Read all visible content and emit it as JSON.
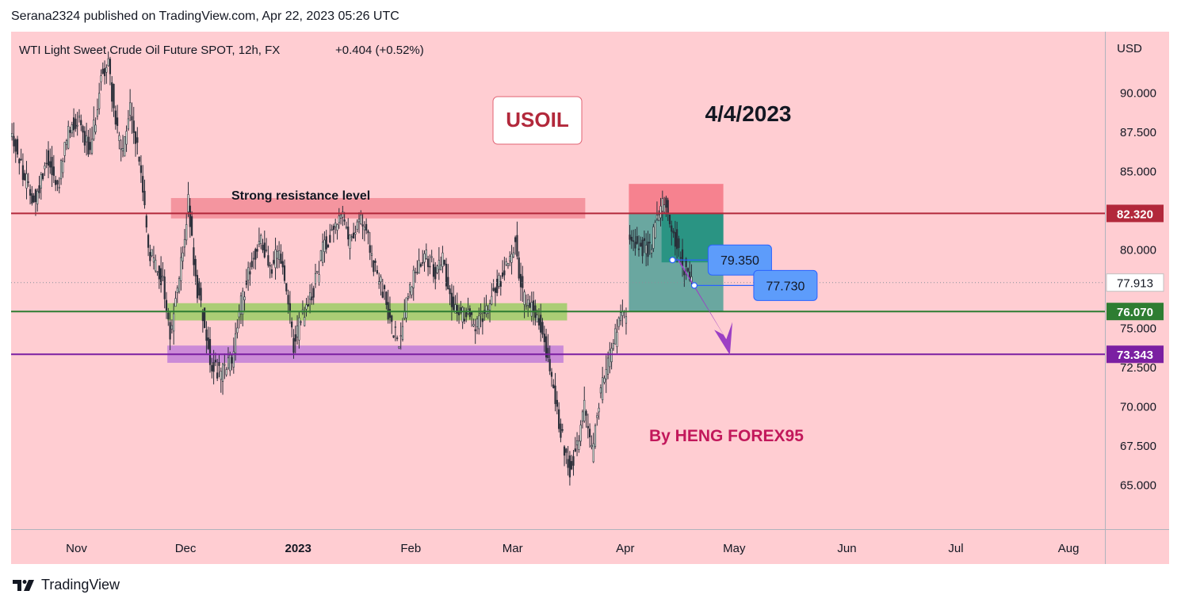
{
  "header": {
    "text": "Serana2324 published on TradingView.com, Apr 22, 2023 05:26 UTC"
  },
  "chart_info": {
    "symbol_line": "WTI Light Sweet Crude Oil Future SPOT, 12h, FX",
    "change": "+0.404 (+0.52%)",
    "currency": "USD"
  },
  "annotations": {
    "ticker_badge": "USOIL",
    "date": "4/4/2023",
    "resistance_label": "Strong resistance level",
    "author": "By HENG FOREX95"
  },
  "footer": {
    "brand": "TradingView"
  },
  "colors": {
    "background": "#ffcdd2",
    "resistance_line": "#b2283b",
    "support_green": "#2e7d32",
    "support_purple": "#7b1fa2",
    "arrow": "#9c3fc4",
    "label_blue": "#5d9cfb",
    "author_text": "#c2185b"
  },
  "chart_data": {
    "type": "candlestick",
    "title": "WTI Light Sweet Crude Oil Future SPOT, 12h, FX",
    "ylabel": "USD",
    "ylim": [
      62.2,
      93.9
    ],
    "x_ticks": [
      "Nov",
      "Dec",
      "2023",
      "Feb",
      "Mar",
      "Apr",
      "May",
      "Jun",
      "Jul",
      "Aug"
    ],
    "x_tick_days": [
      0,
      30,
      61,
      92,
      120,
      151,
      181,
      212,
      242,
      273
    ],
    "x_range_days": [
      -18,
      283
    ],
    "y_ticks": [
      65.0,
      67.5,
      70.0,
      72.5,
      75.0,
      80.0,
      85.0,
      87.5,
      90.0
    ],
    "y_tick_labels": [
      "65.000",
      "67.500",
      "70.000",
      "72.500",
      "75.000",
      "80.000",
      "85.000",
      "87.500",
      "90.000"
    ],
    "current_price": 77.913,
    "current_price_label": "77.913",
    "levels": [
      {
        "name": "resistance",
        "value": 82.32,
        "label": "82.320",
        "color": "#b2283b"
      },
      {
        "name": "support-green",
        "value": 76.07,
        "label": "76.070",
        "color": "#2e7d32"
      },
      {
        "name": "support-purple",
        "value": 73.343,
        "label": "73.343",
        "color": "#7b1fa2"
      }
    ],
    "zones": [
      {
        "name": "resistance-zone",
        "day_start": 26,
        "day_end": 140,
        "low": 82.0,
        "high": 83.3,
        "color": "#f28b96"
      },
      {
        "name": "green-zone",
        "day_start": 25,
        "day_end": 135,
        "low": 75.5,
        "high": 76.6,
        "color": "#9ccc65"
      },
      {
        "name": "purple-zone",
        "day_start": 25,
        "day_end": 134,
        "low": 72.8,
        "high": 73.9,
        "color": "#c27fd8"
      }
    ],
    "position": {
      "type": "short",
      "day_start": 152,
      "day_end": 178,
      "entry": 82.32,
      "stop": 84.2,
      "target": 76.07
    },
    "price_labels": [
      {
        "value": 79.35,
        "label": "79.350",
        "day": 164
      },
      {
        "value": 77.73,
        "label": "77.730",
        "day": 170
      }
    ],
    "ohlc_anchors": [
      [
        -18,
        87.8
      ],
      [
        -14,
        84.5
      ],
      [
        -11,
        83.0
      ],
      [
        -8,
        86.0
      ],
      [
        -5,
        84.0
      ],
      [
        -2,
        87.5
      ],
      [
        1,
        88.5
      ],
      [
        4,
        86.0
      ],
      [
        7,
        91.0
      ],
      [
        9,
        92.0
      ],
      [
        11,
        88.0
      ],
      [
        13,
        86.0
      ],
      [
        15,
        89.0
      ],
      [
        18,
        85.0
      ],
      [
        20,
        80.0
      ],
      [
        22,
        79.0
      ],
      [
        24,
        78.0
      ],
      [
        26,
        74.5
      ],
      [
        29,
        79.0
      ],
      [
        31,
        83.0
      ],
      [
        33,
        78.0
      ],
      [
        35,
        76.0
      ],
      [
        37,
        73.0
      ],
      [
        40,
        72.0
      ],
      [
        43,
        73.0
      ],
      [
        45,
        76.0
      ],
      [
        48,
        79.0
      ],
      [
        51,
        80.5
      ],
      [
        54,
        79.0
      ],
      [
        56,
        80.0
      ],
      [
        58,
        77.0
      ],
      [
        60,
        74.0
      ],
      [
        62,
        75.5
      ],
      [
        65,
        77.0
      ],
      [
        68,
        80.0
      ],
      [
        71,
        81.5
      ],
      [
        73,
        82.5
      ],
      [
        75,
        80.5
      ],
      [
        78,
        82.0
      ],
      [
        80,
        81.0
      ],
      [
        82,
        79.0
      ],
      [
        85,
        77.0
      ],
      [
        87,
        75.0
      ],
      [
        89,
        74.0
      ],
      [
        91,
        77.0
      ],
      [
        94,
        79.0
      ],
      [
        96,
        80.0
      ],
      [
        99,
        78.5
      ],
      [
        101,
        79.5
      ],
      [
        103,
        77.0
      ],
      [
        106,
        75.5
      ],
      [
        108,
        76.5
      ],
      [
        110,
        75.0
      ],
      [
        112,
        76.0
      ],
      [
        115,
        77.5
      ],
      [
        117,
        78.0
      ],
      [
        119,
        79.5
      ],
      [
        121,
        80.5
      ],
      [
        123,
        77.0
      ],
      [
        126,
        76.0
      ],
      [
        128,
        75.0
      ],
      [
        130,
        73.0
      ],
      [
        132,
        70.0
      ],
      [
        134,
        68.0
      ],
      [
        136,
        66.0
      ],
      [
        138,
        67.5
      ],
      [
        140,
        70.0
      ],
      [
        142,
        67.0
      ],
      [
        144,
        70.5
      ],
      [
        146,
        72.5
      ],
      [
        148,
        74.0
      ],
      [
        150,
        75.5
      ],
      [
        151.5,
        76.1
      ]
    ],
    "ohlc_anchors_2": [
      [
        152,
        80.5
      ],
      [
        155,
        80.2
      ],
      [
        158,
        80.0
      ],
      [
        160,
        82.0
      ],
      [
        162,
        83.0
      ],
      [
        164,
        81.5
      ],
      [
        166,
        80.0
      ],
      [
        168,
        78.5
      ],
      [
        169.5,
        77.9
      ]
    ]
  }
}
